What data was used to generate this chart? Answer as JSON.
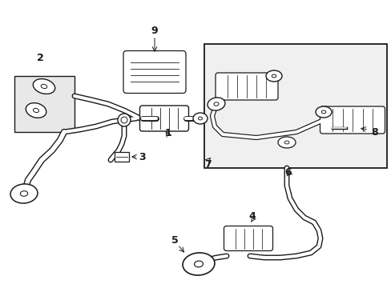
{
  "bg_color": "#ffffff",
  "line_color": "#1a1a1a",
  "gray_fill": "#e8e8e8",
  "light_gray": "#f0f0f0",
  "figsize": [
    4.89,
    3.6
  ],
  "dpi": 100,
  "pipe_lw_outer": 4.5,
  "pipe_lw_inner": 2.8,
  "component_lw": 0.9,
  "label_fontsize": 9,
  "label_fontweight": "bold"
}
